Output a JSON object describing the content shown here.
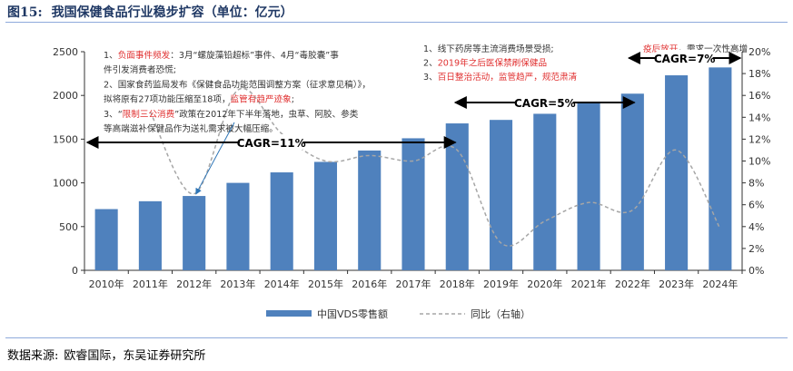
{
  "figure": {
    "label": "图15:",
    "title": "我国保健食品行业稳步扩容（单位：亿元）"
  },
  "source": {
    "label": "数据来源:",
    "text": "欧睿国际，东吴证券研究所"
  },
  "annotations": {
    "box1": [
      [
        {
          "t": "1、",
          "c": "#333333"
        },
        {
          "t": "负面事件频发",
          "c": "#e03030"
        },
        {
          "t": "：3月“螺旋藻铅超标”事件、4月“毒胶囊”事",
          "c": "#333333"
        }
      ],
      [
        {
          "t": "件引发消费者恐慌;",
          "c": "#333333"
        }
      ],
      [
        {
          "t": "2、国家食药监局发布《保健食品功能范围调整方案（征求意见稿）》，",
          "c": "#333333"
        }
      ],
      [
        {
          "t": "拟将原有27项功能压缩至18项，",
          "c": "#333333"
        },
        {
          "t": "监管有趋严迹象",
          "c": "#e03030"
        },
        {
          "t": ";",
          "c": "#333333"
        }
      ],
      [
        {
          "t": "3、“",
          "c": "#333333"
        },
        {
          "t": "限制三公消费",
          "c": "#e03030"
        },
        {
          "t": "”政策在2012年下半年落地，虫草、阿胶、参类",
          "c": "#333333"
        }
      ],
      [
        {
          "t": "等高端滋补保健品作为送礼需求被大幅压缩。",
          "c": "#333333"
        }
      ]
    ],
    "box2": [
      [
        {
          "t": "1、线下药房等主流消费场景受损;",
          "c": "#333333"
        }
      ],
      [
        {
          "t": "2、",
          "c": "#333333"
        },
        {
          "t": "2019年之后医保禁刷保健品",
          "c": "#e03030"
        }
      ],
      [
        {
          "t": "3、",
          "c": "#333333"
        },
        {
          "t": "百日整治活动，监管趋严，规范肃清",
          "c": "#e03030"
        }
      ]
    ],
    "box3": [
      [
        {
          "t": "疫后放开",
          "c": "#e03030"
        },
        {
          "t": "，需求一次性高增",
          "c": "#333333"
        }
      ]
    ],
    "cagr": [
      {
        "label": "CAGR=11%",
        "from": "2010年",
        "to": "2018年"
      },
      {
        "label": "CAGR=5%",
        "from": "2018年",
        "to": "2022年"
      },
      {
        "label": "CAGR=7%",
        "from": "2022年",
        "to": "2024年"
      }
    ]
  },
  "chart_data": {
    "type": "bar",
    "categories": [
      "2010年",
      "2011年",
      "2012年",
      "2013年",
      "2014年",
      "2015年",
      "2016年",
      "2017年",
      "2018年",
      "2019年",
      "2020年",
      "2021年",
      "2022年",
      "2023年",
      "2024年"
    ],
    "series": [
      {
        "name": "中国VDS零售额",
        "type": "bar",
        "axis": "left",
        "color": "#4f81bd",
        "values": [
          700,
          790,
          850,
          1000,
          1120,
          1240,
          1370,
          1510,
          1680,
          1720,
          1790,
          1920,
          2020,
          2230,
          2320
        ]
      },
      {
        "name": "同比（右轴）",
        "type": "line",
        "axis": "right",
        "color": "#a6a6a6",
        "dash": true,
        "values": [
          null,
          14.5,
          7.0,
          16.5,
          12.5,
          10.0,
          10.5,
          10.0,
          11.0,
          2.5,
          4.5,
          6.2,
          5.5,
          11.0,
          3.8
        ]
      }
    ],
    "y_left": {
      "min": 0,
      "max": 2500,
      "ticks": [
        0,
        500,
        1000,
        1500,
        2000,
        2500
      ]
    },
    "y_right": {
      "min": 0,
      "max": 20,
      "ticks": [
        0,
        2,
        4,
        6,
        8,
        10,
        12,
        14,
        16,
        18,
        20
      ],
      "unit": "%"
    },
    "legend_position": "bottom-center",
    "grid": false
  }
}
